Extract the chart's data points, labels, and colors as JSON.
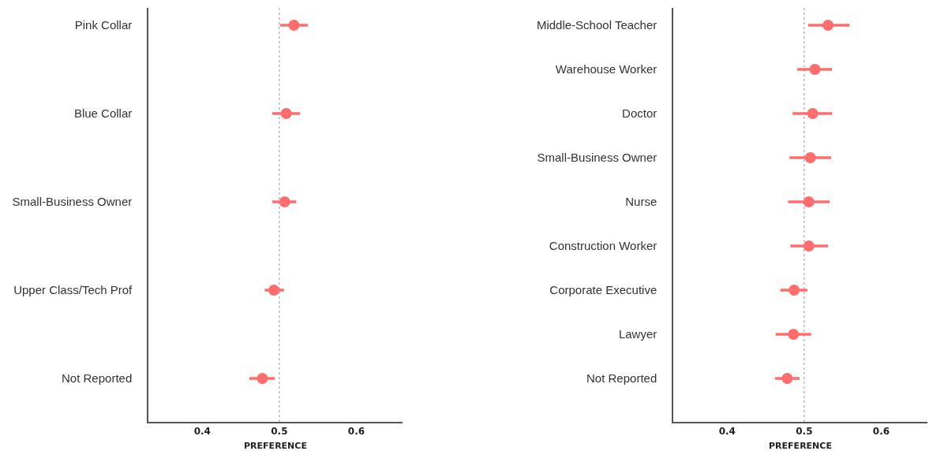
{
  "chart_data": [
    {
      "type": "scatter",
      "orientation": "horizontal",
      "xlabel": "PREFERENCE",
      "categories": [
        "Pink Collar",
        "Blue Collar",
        "Small-Business Owner",
        "Upper Class/Tech Prof",
        "Not Reported"
      ],
      "series": [
        {
          "color": "#fc6e6e",
          "values": [
            0.519,
            0.509,
            0.507,
            0.493,
            0.478
          ],
          "errors": [
            [
              0.501,
              0.537
            ],
            [
              0.491,
              0.527
            ],
            [
              0.491,
              0.522
            ],
            [
              0.481,
              0.506
            ],
            [
              0.461,
              0.494
            ]
          ]
        }
      ],
      "xlim": [
        0.33,
        0.66
      ],
      "xticks": [
        0.4,
        0.5,
        0.6
      ],
      "grid": false,
      "marker": "circle",
      "ref_lines": [
        {
          "axis": "x",
          "value": 0.5,
          "color": "#999999",
          "line_style": "dotted"
        }
      ]
    },
    {
      "type": "scatter",
      "orientation": "horizontal",
      "xlabel": "PREFERENCE",
      "categories": [
        "Middle-School Teacher",
        "Warehouse Worker",
        "Doctor",
        "Small-Business Owner",
        "Nurse",
        "Construction Worker",
        "Corporate Executive",
        "Lawyer",
        "Not Reported"
      ],
      "series": [
        {
          "color": "#fc6e6e",
          "values": [
            0.531,
            0.514,
            0.511,
            0.508,
            0.506,
            0.506,
            0.487,
            0.486,
            0.478
          ],
          "errors": [
            [
              0.505,
              0.559
            ],
            [
              0.491,
              0.536
            ],
            [
              0.485,
              0.536
            ],
            [
              0.481,
              0.535
            ],
            [
              0.479,
              0.533
            ],
            [
              0.482,
              0.531
            ],
            [
              0.469,
              0.504
            ],
            [
              0.463,
              0.509
            ],
            [
              0.462,
              0.494
            ]
          ]
        }
      ],
      "xlim": [
        0.33,
        0.66
      ],
      "xticks": [
        0.4,
        0.5,
        0.6
      ],
      "grid": false,
      "marker": "circle",
      "ref_lines": [
        {
          "axis": "x",
          "value": 0.5,
          "color": "#999999",
          "line_style": "dotted"
        }
      ]
    }
  ]
}
